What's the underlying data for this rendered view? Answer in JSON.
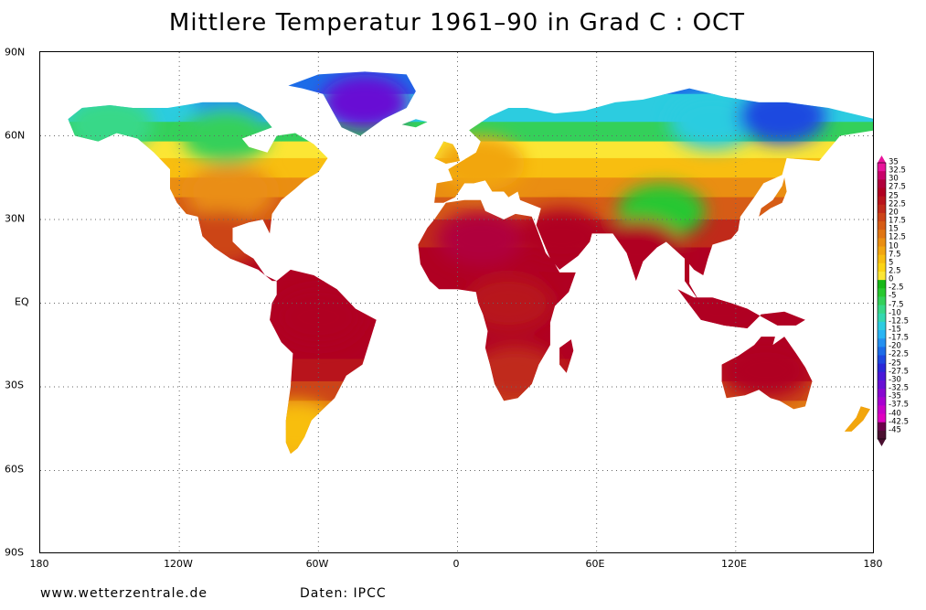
{
  "title": "Mittlere Temperatur 1961–90 in Grad C : OCT",
  "footer": {
    "website": "www.wetterzentrale.de",
    "source": "Daten: IPCC"
  },
  "axes": {
    "lat_labels": [
      "90N",
      "60N",
      "30N",
      "EQ",
      "30S",
      "60S",
      "90S"
    ],
    "lon_labels": [
      "180",
      "120W",
      "60W",
      "0",
      "60E",
      "120E",
      "180"
    ]
  },
  "legend": {
    "labels": [
      "35",
      "32.5",
      "30",
      "27.5",
      "25",
      "22.5",
      "20",
      "17.5",
      "15",
      "12.5",
      "10",
      "7.5",
      "5",
      "2.5",
      "0",
      "-2.5",
      "-5",
      "-7.5",
      "-10",
      "-12.5",
      "-15",
      "-17.5",
      "-20",
      "-22.5",
      "-25",
      "-27.5",
      "-30",
      "-32.5",
      "-35",
      "-37.5",
      "-40",
      "-42.5",
      "-45"
    ],
    "colors": [
      "#e8139a",
      "#c8006a",
      "#b0003c",
      "#b00022",
      "#b8141c",
      "#c02a1a",
      "#cc4418",
      "#d65c16",
      "#e07614",
      "#ea8e12",
      "#f2a610",
      "#f8be10",
      "#fcd414",
      "#fce634",
      "#18b818",
      "#28c830",
      "#34d05a",
      "#38d888",
      "#34d8b0",
      "#2ccce0",
      "#28b4f4",
      "#2490f0",
      "#1c6ce8",
      "#1e48e0",
      "#2a28d8",
      "#4a18d8",
      "#6810d4",
      "#8808d0",
      "#a800d0",
      "#c800c8",
      "#e000c0",
      "#6a004a",
      "#4a1030"
    ]
  },
  "chart_data": {
    "type": "heatmap",
    "title": "Mittlere Temperatur 1961–90 in Grad C : OCT",
    "xlabel": "",
    "ylabel": "",
    "x_ticks": [
      "180",
      "120W",
      "60W",
      "0",
      "60E",
      "120E",
      "180"
    ],
    "y_ticks": [
      "90N",
      "60N",
      "30N",
      "EQ",
      "30S",
      "60S",
      "90S"
    ],
    "xlim": [
      -180,
      180
    ],
    "ylim": [
      -90,
      90
    ],
    "grid": true,
    "legend_position": "right",
    "colorbar_unit": "Grad C",
    "regions": [
      {
        "name": "Greenland interior",
        "lat": 72,
        "lon": -40,
        "value": -30
      },
      {
        "name": "Canadian Arctic",
        "lat": 72,
        "lon": -95,
        "value": -17.5
      },
      {
        "name": "Alaska",
        "lat": 64,
        "lon": -150,
        "value": -7.5
      },
      {
        "name": "Northern Canada",
        "lat": 60,
        "lon": -100,
        "value": -5
      },
      {
        "name": "USA central",
        "lat": 40,
        "lon": -98,
        "value": 12.5
      },
      {
        "name": "Mexico",
        "lat": 23,
        "lon": -102,
        "value": 20
      },
      {
        "name": "Amazon",
        "lat": -5,
        "lon": -60,
        "value": 27.5
      },
      {
        "name": "Patagonia",
        "lat": -45,
        "lon": -70,
        "value": 7.5
      },
      {
        "name": "Europe",
        "lat": 50,
        "lon": 10,
        "value": 10
      },
      {
        "name": "Sahara",
        "lat": 23,
        "lon": 10,
        "value": 30
      },
      {
        "name": "Central Africa",
        "lat": 0,
        "lon": 22,
        "value": 25
      },
      {
        "name": "Southern Africa",
        "lat": -25,
        "lon": 25,
        "value": 22.5
      },
      {
        "name": "Siberia",
        "lat": 65,
        "lon": 110,
        "value": -12.5
      },
      {
        "name": "Eastern Siberia",
        "lat": 67,
        "lon": 140,
        "value": -22.5
      },
      {
        "name": "Tibet",
        "lat": 33,
        "lon": 88,
        "value": -2.5
      },
      {
        "name": "India",
        "lat": 20,
        "lon": 78,
        "value": 27.5
      },
      {
        "name": "Arabia",
        "lat": 24,
        "lon": 45,
        "value": 27.5
      },
      {
        "name": "Australia central",
        "lat": -24,
        "lon": 133,
        "value": 27.5
      },
      {
        "name": "Indonesia",
        "lat": -2,
        "lon": 115,
        "value": 27.5
      },
      {
        "name": "New Zealand",
        "lat": -42,
        "lon": 172,
        "value": 10
      }
    ]
  }
}
